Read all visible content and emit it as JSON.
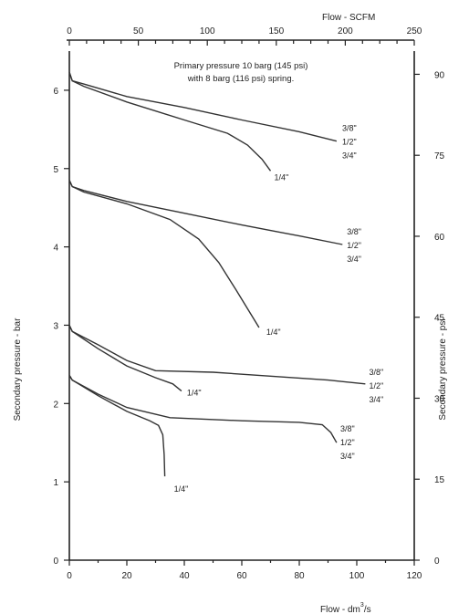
{
  "chart_data": {
    "type": "line",
    "annotation_lines": [
      "Primary pressure 10 barg (145 psi)",
      "with 8 barg (116 psi) spring."
    ],
    "x_bottom": {
      "label_main": "Flow - dm",
      "label_sup": "3",
      "label_tail": "/s",
      "ticks": [
        0,
        20,
        40,
        60,
        80,
        100,
        120
      ],
      "range": [
        0,
        120
      ]
    },
    "x_top": {
      "label": "Flow - SCFM",
      "ticks": [
        0,
        50,
        100,
        150,
        200,
        250
      ],
      "range": [
        0,
        250
      ]
    },
    "y_left": {
      "label": "Secondary pressure - bar",
      "ticks": [
        0,
        1,
        2,
        3,
        4,
        5,
        6
      ],
      "range": [
        0,
        6.5
      ]
    },
    "y_right": {
      "label": "Secondary pressure - psi",
      "ticks": [
        0,
        15,
        30,
        45,
        60,
        75,
        90
      ],
      "range": [
        0,
        94.3
      ]
    },
    "grid": false,
    "series": [
      {
        "group": 1,
        "size": "3/8\"",
        "x": [
          0,
          1,
          5,
          20,
          40,
          60,
          80,
          93
        ],
        "y": [
          6.23,
          6.12,
          6.08,
          5.92,
          5.78,
          5.62,
          5.47,
          5.35
        ]
      },
      {
        "group": 1,
        "size": "1/4\"",
        "x": [
          0,
          1,
          5,
          20,
          40,
          55,
          62,
          67,
          70
        ],
        "y": [
          6.23,
          6.12,
          6.05,
          5.85,
          5.62,
          5.45,
          5.3,
          5.12,
          4.97
        ]
      },
      {
        "group": 2,
        "size": "3/8\"",
        "x": [
          0,
          1,
          5,
          20,
          40,
          60,
          80,
          95
        ],
        "y": [
          4.85,
          4.77,
          4.72,
          4.58,
          4.43,
          4.28,
          4.14,
          4.03
        ]
      },
      {
        "group": 2,
        "size": "1/4\"",
        "x": [
          0,
          1,
          5,
          20,
          35,
          45,
          52,
          58,
          63,
          66
        ],
        "y": [
          4.85,
          4.77,
          4.7,
          4.55,
          4.35,
          4.1,
          3.8,
          3.45,
          3.15,
          2.97
        ]
      },
      {
        "group": 3,
        "size": "3/8\"",
        "x": [
          0,
          1,
          10,
          20,
          30,
          50,
          70,
          90,
          103
        ],
        "y": [
          3.0,
          2.92,
          2.75,
          2.55,
          2.42,
          2.4,
          2.35,
          2.3,
          2.25
        ]
      },
      {
        "group": 3,
        "size": "1/4\"",
        "x": [
          0,
          1,
          10,
          20,
          30,
          36,
          39
        ],
        "y": [
          3.0,
          2.92,
          2.7,
          2.48,
          2.33,
          2.25,
          2.16
        ]
      },
      {
        "group": 4,
        "size": "3/8\"",
        "x": [
          0,
          1,
          10,
          20,
          35,
          60,
          80,
          88,
          91,
          93
        ],
        "y": [
          2.36,
          2.3,
          2.12,
          1.95,
          1.82,
          1.78,
          1.76,
          1.73,
          1.63,
          1.5
        ]
      },
      {
        "group": 4,
        "size": "1/4\"",
        "x": [
          0,
          1,
          10,
          20,
          28,
          31,
          32.5,
          33,
          33.2
        ],
        "y": [
          2.36,
          2.3,
          2.1,
          1.9,
          1.78,
          1.72,
          1.6,
          1.35,
          1.07
        ]
      }
    ],
    "size_labels": [
      {
        "group": 1,
        "lines": [
          "3/8\"",
          "1/2\"",
          "3/4\""
        ],
        "single": "1/4\""
      },
      {
        "group": 2,
        "lines": [
          "3/8\"",
          "1/2\"",
          "3/4\""
        ],
        "single": "1/4\""
      },
      {
        "group": 3,
        "lines": [
          "3/8\"",
          "1/2\"",
          "3/4\""
        ],
        "single": "1/4\""
      },
      {
        "group": 4,
        "lines": [
          "3/8\"",
          "1/2\"",
          "3/4\""
        ],
        "single": "1/4\""
      }
    ]
  }
}
